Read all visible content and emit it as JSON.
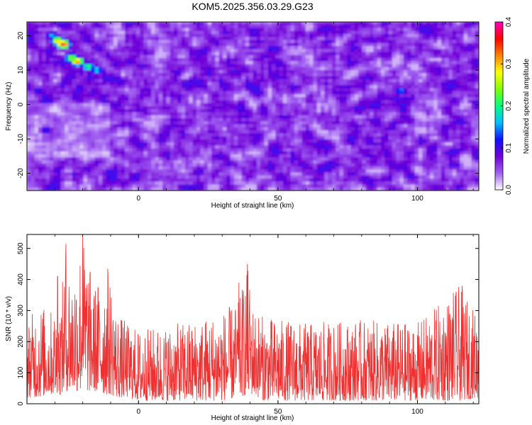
{
  "title": "KOM5.2025.356.03.29.G23",
  "chart_data": [
    {
      "type": "heatmap",
      "xlabel": "Height of straight line (km)",
      "ylabel": "Frequency (Hz)",
      "xlim": [
        -40,
        122
      ],
      "ylim": [
        -25,
        24
      ],
      "xticks": [
        0,
        50,
        100
      ],
      "yticks": [
        -20,
        -10,
        0,
        10,
        20
      ],
      "colorbar": {
        "label": "Normalized spectral amplitude",
        "range": [
          0.0,
          0.4
        ],
        "ticks": [
          0.0,
          0.1,
          0.2,
          0.3,
          0.4
        ],
        "colors": [
          "#ffffff",
          "#a060f0",
          "#7000d8",
          "#1010ff",
          "#00c0ff",
          "#00ff80",
          "#80ff00",
          "#ffff00",
          "#ff8000",
          "#ff0000",
          "#ff00c0"
        ]
      },
      "hotspots": [
        {
          "x": -27,
          "y": 17.5,
          "value": 0.38
        },
        {
          "x": -29,
          "y": 18.5,
          "value": 0.3
        },
        {
          "x": -22,
          "y": 12.5,
          "value": 0.33
        },
        {
          "x": -24,
          "y": 13.5,
          "value": 0.26
        },
        {
          "x": -18,
          "y": 11.0,
          "value": 0.22
        },
        {
          "x": -15,
          "y": 10.0,
          "value": 0.18
        },
        {
          "x": -31,
          "y": 20.0,
          "value": 0.16
        },
        {
          "x": 94,
          "y": 4.0,
          "value": 0.15
        },
        {
          "x": -36,
          "y": 4.0,
          "value": 0.12
        },
        {
          "x": -33,
          "y": -7.5,
          "value": 0.12
        }
      ],
      "background_level": [
        0.02,
        0.1
      ]
    },
    {
      "type": "line",
      "xlabel": "Height of straight line (km)",
      "ylabel": "SNR (10 * v/v)",
      "xlim": [
        -40,
        122
      ],
      "ylim": [
        0,
        545
      ],
      "xticks": [
        0,
        50,
        100
      ],
      "yticks": [
        0,
        100,
        200,
        300,
        400,
        500
      ],
      "color": "#f03030",
      "envelope": [
        {
          "x": -40,
          "min": 20,
          "max": 260
        },
        {
          "x": -36,
          "min": 20,
          "max": 330
        },
        {
          "x": -32,
          "min": 30,
          "max": 300
        },
        {
          "x": -28,
          "min": 30,
          "max": 320
        },
        {
          "x": -26,
          "min": 40,
          "max": 515
        },
        {
          "x": -24,
          "min": 40,
          "max": 420
        },
        {
          "x": -20,
          "min": 40,
          "max": 545
        },
        {
          "x": -16,
          "min": 40,
          "max": 380
        },
        {
          "x": -12,
          "min": 30,
          "max": 430
        },
        {
          "x": -10,
          "min": 30,
          "max": 410
        },
        {
          "x": -8,
          "min": 20,
          "max": 300
        },
        {
          "x": -4,
          "min": 20,
          "max": 260
        },
        {
          "x": 0,
          "min": 10,
          "max": 240
        },
        {
          "x": 10,
          "min": 10,
          "max": 250
        },
        {
          "x": 20,
          "min": 10,
          "max": 270
        },
        {
          "x": 30,
          "min": 10,
          "max": 300
        },
        {
          "x": 36,
          "min": 20,
          "max": 330
        },
        {
          "x": 39,
          "min": 30,
          "max": 450
        },
        {
          "x": 41,
          "min": 30,
          "max": 320
        },
        {
          "x": 45,
          "min": 10,
          "max": 280
        },
        {
          "x": 60,
          "min": 10,
          "max": 260
        },
        {
          "x": 80,
          "min": 10,
          "max": 270
        },
        {
          "x": 100,
          "min": 10,
          "max": 260
        },
        {
          "x": 115,
          "min": 10,
          "max": 380
        },
        {
          "x": 122,
          "min": 20,
          "max": 280
        }
      ],
      "peaks": [
        {
          "x": -26,
          "y": 515
        },
        {
          "x": -20,
          "y": 545
        },
        {
          "x": -11,
          "y": 435
        },
        {
          "x": -29,
          "y": 410
        },
        {
          "x": 39,
          "y": 450
        },
        {
          "x": 116,
          "y": 380
        },
        {
          "x": 36,
          "y": 390
        }
      ]
    }
  ]
}
